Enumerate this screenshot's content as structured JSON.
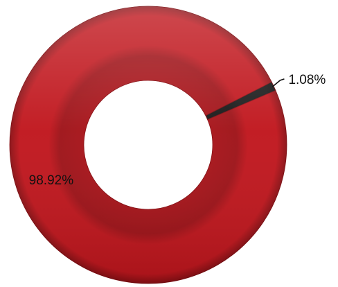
{
  "chart_data": {
    "type": "pie",
    "style": "donut",
    "title": "",
    "categories": [
      "",
      ""
    ],
    "values": [
      1.08,
      98.92
    ],
    "value_labels": [
      "1.08%",
      "98.92%"
    ],
    "colors": [
      "#1a1a1a",
      "#c0151c"
    ],
    "legend": "none",
    "label_style": "percent"
  }
}
